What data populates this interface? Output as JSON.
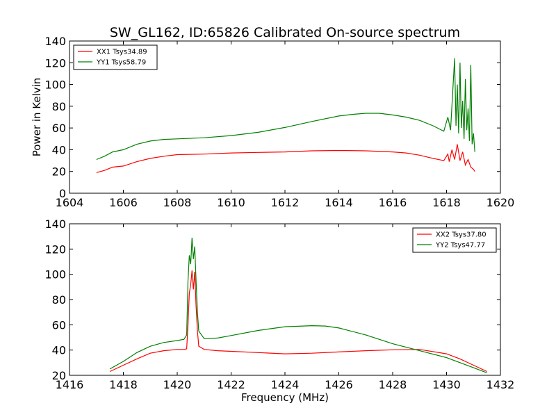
{
  "title": "SW_GL162, ID:65826 Calibrated On-source spectrum",
  "chart_data": [
    {
      "type": "line",
      "ylabel": "Power in Kelvin",
      "xlabel": "",
      "xlim": [
        1604,
        1620
      ],
      "ylim": [
        0,
        140
      ],
      "xticks": [
        "1604",
        "1606",
        "1608",
        "1610",
        "1612",
        "1614",
        "1616",
        "1618",
        "1620"
      ],
      "yticks": [
        "0",
        "20",
        "40",
        "60",
        "80",
        "100",
        "120",
        "140"
      ],
      "grid": false,
      "legend_position": "top-left",
      "series": [
        {
          "name": "XX1 Tsys34.89",
          "color": "#ff0000",
          "x": [
            1605.0,
            1605.3,
            1605.6,
            1606.0,
            1606.5,
            1607.0,
            1607.5,
            1608.0,
            1609.0,
            1610.0,
            1611.0,
            1612.0,
            1613.0,
            1614.0,
            1615.0,
            1616.0,
            1616.5,
            1617.0,
            1617.5,
            1617.9,
            1618.05,
            1618.1,
            1618.2,
            1618.3,
            1618.4,
            1618.5,
            1618.6,
            1618.7,
            1618.8,
            1618.9,
            1619.0,
            1619.05
          ],
          "y": [
            19,
            21,
            24,
            25,
            29,
            32,
            34,
            35.5,
            36,
            37,
            37.5,
            38,
            39,
            39.3,
            39,
            38,
            37,
            35,
            32,
            30,
            36,
            29,
            40,
            31,
            45,
            30,
            38,
            26,
            31,
            24,
            22,
            20
          ]
        },
        {
          "name": "YY1 Tsys58.79",
          "color": "#008000",
          "x": [
            1605.0,
            1605.3,
            1605.6,
            1606.0,
            1606.5,
            1607.0,
            1607.5,
            1608.0,
            1609.0,
            1610.0,
            1611.0,
            1612.0,
            1613.0,
            1614.0,
            1614.5,
            1615.0,
            1615.5,
            1616.0,
            1616.5,
            1617.0,
            1617.5,
            1617.9,
            1618.05,
            1618.15,
            1618.3,
            1618.35,
            1618.4,
            1618.45,
            1618.5,
            1618.55,
            1618.6,
            1618.65,
            1618.7,
            1618.75,
            1618.8,
            1618.85,
            1618.9,
            1618.95,
            1619.0,
            1619.05
          ],
          "y": [
            31,
            34,
            38,
            40,
            45,
            48,
            49.5,
            50,
            51,
            53,
            56,
            60.5,
            66,
            71,
            72.5,
            73.5,
            73.5,
            72,
            70,
            67,
            62,
            57,
            70,
            58,
            124,
            62,
            100,
            55,
            120,
            60,
            85,
            50,
            105,
            58,
            78,
            48,
            118,
            45,
            55,
            38
          ]
        }
      ]
    },
    {
      "type": "line",
      "ylabel": "",
      "xlabel": "Frequency (MHz)",
      "xlim": [
        1416,
        1432
      ],
      "ylim": [
        20,
        140
      ],
      "xticks": [
        "1416",
        "1418",
        "1420",
        "1422",
        "1424",
        "1426",
        "1428",
        "1430",
        "1432"
      ],
      "yticks": [
        "20",
        "40",
        "60",
        "80",
        "100",
        "120",
        "140"
      ],
      "grid": false,
      "legend_position": "top-right",
      "series": [
        {
          "name": "XX2 Tsys37.80",
          "color": "#ff0000",
          "x": [
            1417.5,
            1418.0,
            1418.5,
            1419.0,
            1419.5,
            1420.0,
            1420.25,
            1420.35,
            1420.4,
            1420.45,
            1420.5,
            1420.55,
            1420.6,
            1420.65,
            1420.7,
            1420.75,
            1420.8,
            1421.0,
            1421.5,
            1422.0,
            1423.0,
            1424.0,
            1425.0,
            1426.0,
            1427.0,
            1428.0,
            1429.0,
            1430.0,
            1430.5,
            1431.0,
            1431.5
          ],
          "y": [
            23,
            28,
            33,
            37.5,
            39.5,
            40.5,
            40.5,
            41,
            60,
            85,
            92,
            103,
            88,
            102,
            75,
            55,
            43,
            40.5,
            39.5,
            39,
            38,
            37,
            37.5,
            38.5,
            39.5,
            40.2,
            40.5,
            37,
            33,
            28,
            23
          ]
        },
        {
          "name": "YY2 Tsys47.77",
          "color": "#008000",
          "x": [
            1417.5,
            1418.0,
            1418.5,
            1419.0,
            1419.5,
            1420.0,
            1420.25,
            1420.35,
            1420.4,
            1420.45,
            1420.5,
            1420.55,
            1420.6,
            1420.65,
            1420.7,
            1420.75,
            1420.8,
            1421.0,
            1421.5,
            1422.0,
            1423.0,
            1424.0,
            1425.0,
            1425.5,
            1426.0,
            1427.0,
            1428.0,
            1429.0,
            1430.0,
            1430.5,
            1431.0,
            1431.5
          ],
          "y": [
            25,
            31,
            38,
            43,
            46,
            47.5,
            48.5,
            52,
            95,
            115,
            108,
            129,
            112,
            122,
            95,
            70,
            55,
            49,
            49.5,
            51.5,
            55.5,
            58.5,
            59.3,
            59,
            57.5,
            52,
            45,
            39.5,
            34,
            30,
            26,
            22
          ]
        }
      ]
    }
  ]
}
